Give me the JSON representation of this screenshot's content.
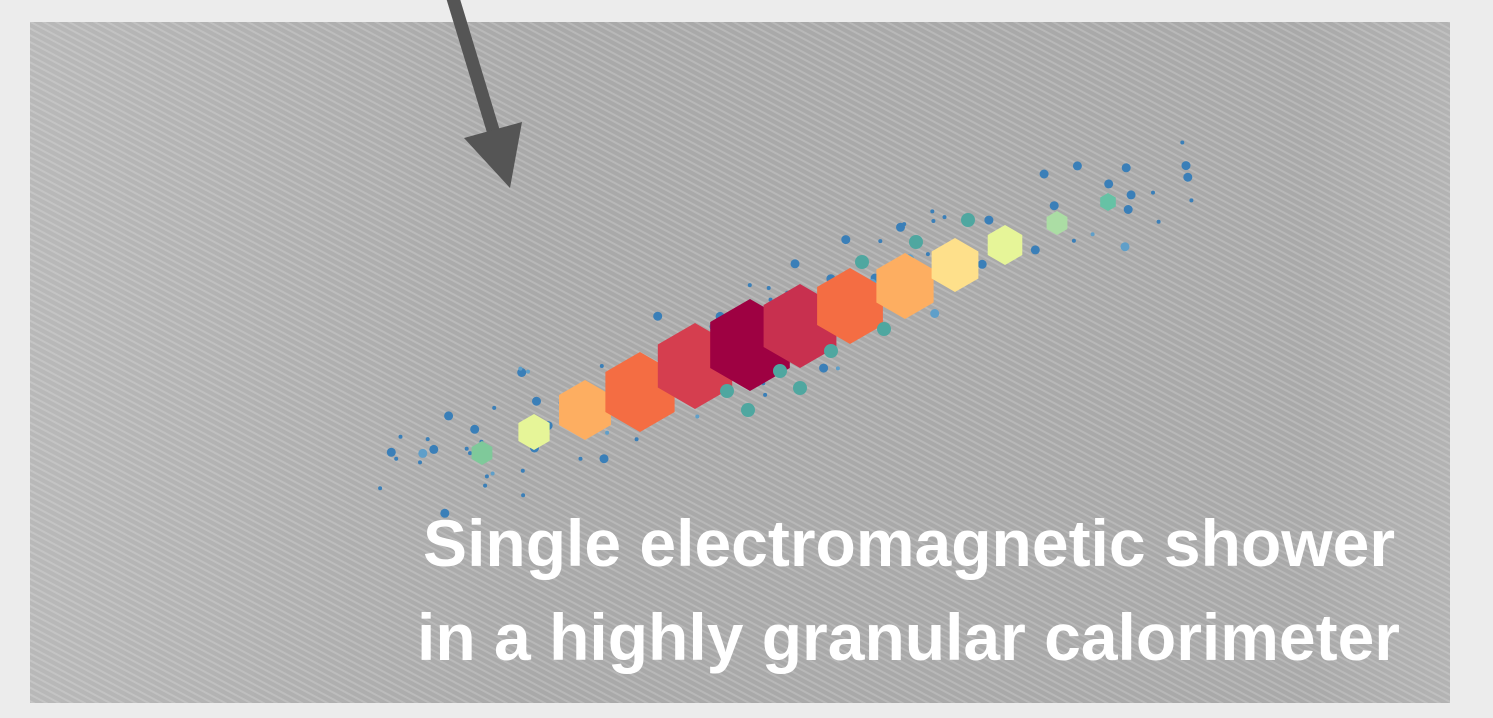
{
  "caption": {
    "lines": [
      "Single electromagnetic shower",
      "in a highly granular calorimeter"
    ]
  }
}
